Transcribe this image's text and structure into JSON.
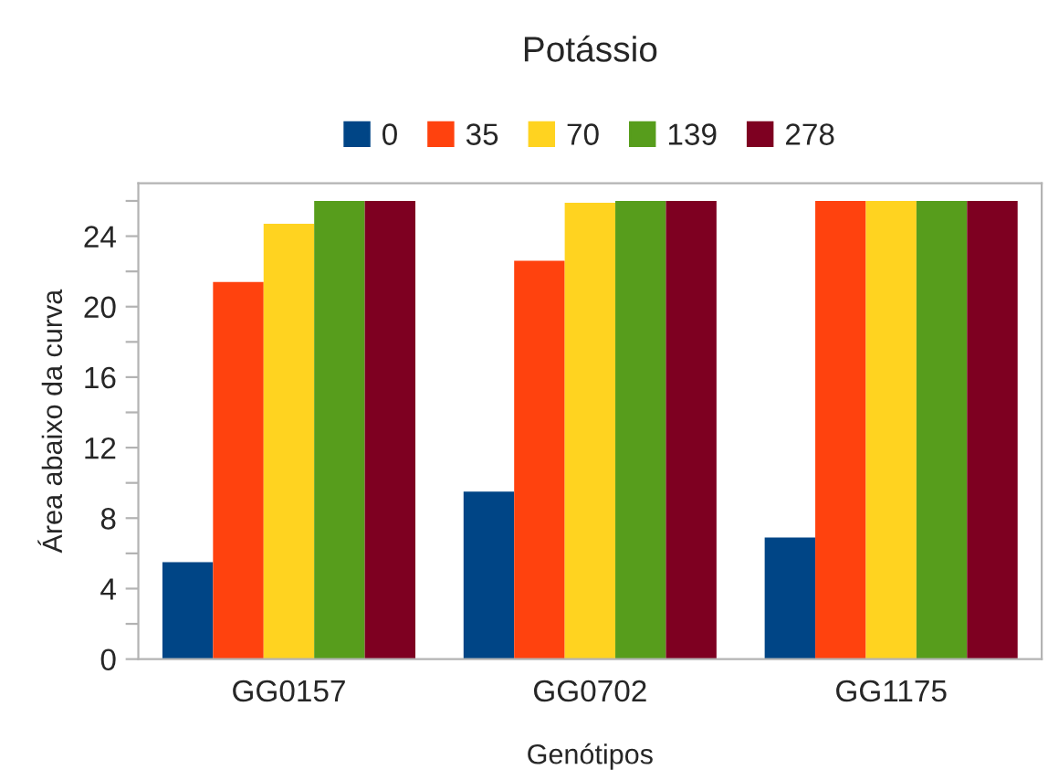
{
  "chart_data": {
    "type": "bar",
    "title": "Potássio",
    "xlabel": "Genótipos",
    "ylabel": "Área abaixo da curva",
    "categories": [
      "GG0157",
      "GG0702",
      "GG1175"
    ],
    "series": [
      {
        "name": "0",
        "color": "#004586",
        "values": [
          5.5,
          9.5,
          6.9
        ]
      },
      {
        "name": "35",
        "color": "#ff420e",
        "values": [
          21.4,
          22.6,
          26.0
        ]
      },
      {
        "name": "70",
        "color": "#ffd320",
        "values": [
          24.7,
          25.9,
          26.0
        ]
      },
      {
        "name": "139",
        "color": "#579d1c",
        "values": [
          26.0,
          26.0,
          26.0
        ]
      },
      {
        "name": "278",
        "color": "#7e0021",
        "values": [
          26.0,
          26.0,
          26.0
        ]
      }
    ],
    "ylim": [
      0,
      27
    ],
    "yticks": [
      0,
      {
        "value": 2,
        "label": null
      },
      4,
      {
        "value": 6,
        "label": null
      },
      8,
      {
        "value": 10,
        "label": null
      },
      12,
      {
        "value": 14,
        "label": null
      },
      16,
      {
        "value": 18,
        "label": null
      },
      20,
      {
        "value": 22,
        "label": null
      },
      24,
      {
        "value": 26,
        "label": null
      }
    ],
    "grid": false,
    "legend": "top"
  }
}
